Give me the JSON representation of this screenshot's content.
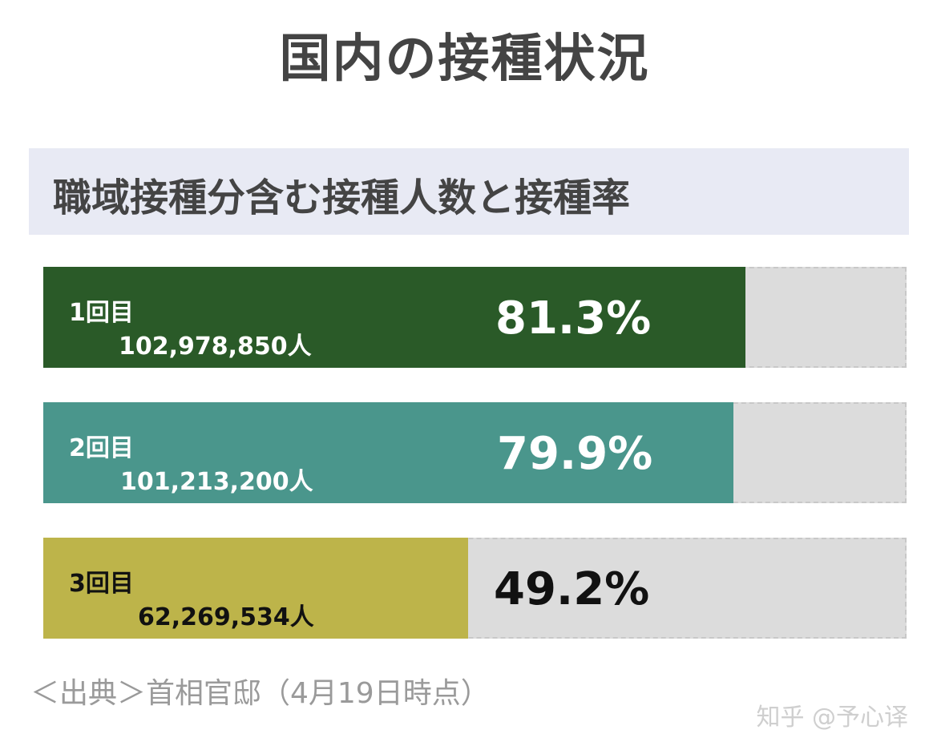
{
  "title": "国内の接種状況",
  "subtitle": "職域接種分含む接種人数と接種率",
  "chart_data": {
    "type": "bar",
    "orientation": "horizontal",
    "xlim": [
      0,
      100
    ],
    "categories": [
      "1回目",
      "2回目",
      "3回目"
    ],
    "series": [
      {
        "values": [
          81.3,
          79.9,
          49.2
        ],
        "counts": [
          "102,978,850人",
          "101,213,200人",
          "62,269,534人"
        ],
        "rate_labels": [
          "81.3%",
          "79.9%",
          "49.2%"
        ],
        "colors": [
          "#2a5a28",
          "#4a968c",
          "#bdb44a"
        ]
      }
    ],
    "track_color": "#dcdcdc",
    "grid": false,
    "legend": "none"
  },
  "source": "＜出典＞首相官邸（4月19日時点）",
  "watermark": "知乎 @予心译"
}
